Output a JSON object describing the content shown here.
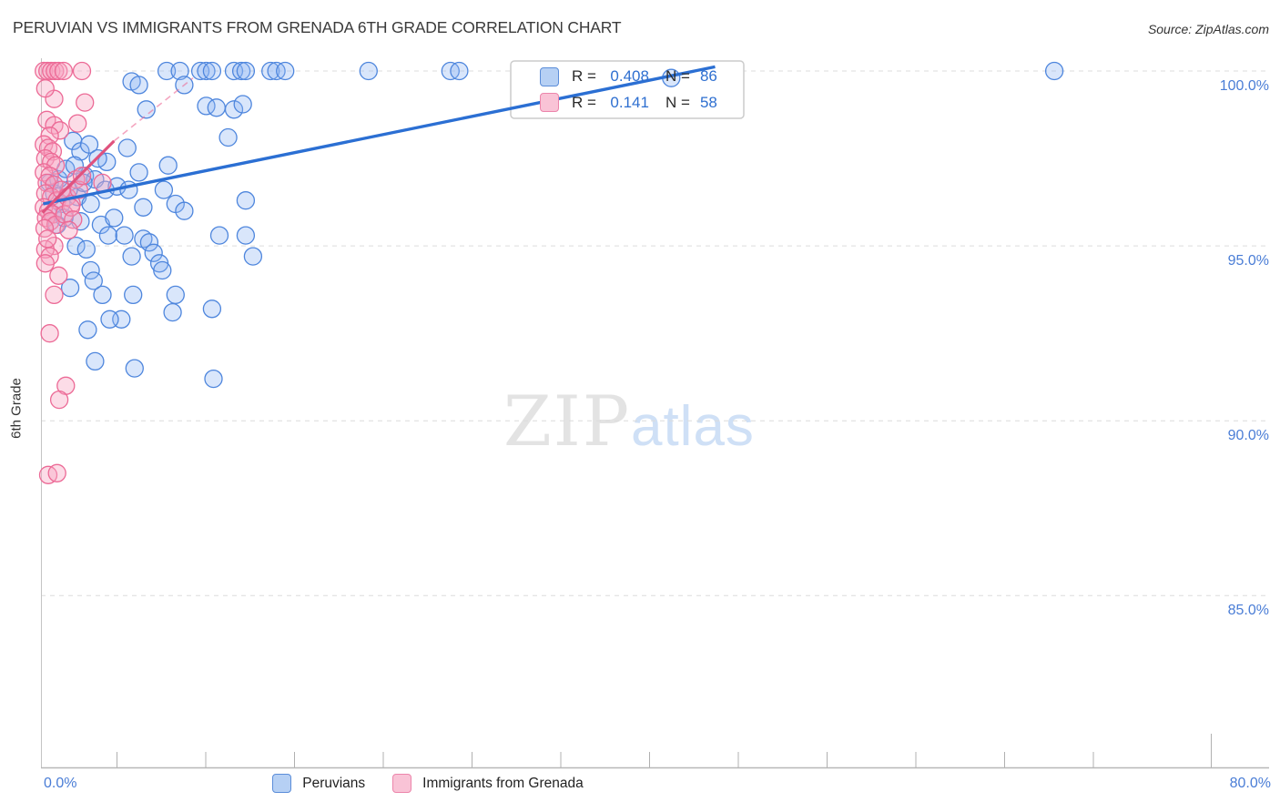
{
  "title": "PERUVIAN VS IMMIGRANTS FROM GRENADA 6TH GRADE CORRELATION CHART",
  "source": "Source: ZipAtlas.com",
  "watermark": {
    "part1": "ZIP",
    "part2": "atlas"
  },
  "y_axis": {
    "label": "6th Grade",
    "ticks": [
      {
        "value": 100,
        "label": "100.0%"
      },
      {
        "value": 95,
        "label": "95.0%"
      },
      {
        "value": 90,
        "label": "90.0%"
      },
      {
        "value": 85,
        "label": "85.0%"
      }
    ]
  },
  "x_axis": {
    "min": 0,
    "max": 80,
    "label_left": "0.0%",
    "label_right": "80.0%"
  },
  "legend_box": {
    "rows": [
      {
        "series": "peruvians",
        "r_label": "R =",
        "r_value": "0.408",
        "n_label": "N =",
        "n_value": "86"
      },
      {
        "series": "grenada",
        "r_label": "R =",
        "r_value": "0.141",
        "n_label": "N =",
        "n_value": "58"
      }
    ]
  },
  "bottom_legend": [
    {
      "series": "peruvians",
      "label": "Peruvians"
    },
    {
      "series": "grenada",
      "label": "Immigrants from Grenada"
    }
  ],
  "colors": {
    "accent_label": "#4a7dd6",
    "grid": "#dcdcdc",
    "axis": "#b8b8b8",
    "peruvians_stroke": "#4e86dd",
    "peruvians_fill": "rgba(140,180,242,0.33)",
    "peruvians_trend": "#2b6fd3",
    "grenada_stroke": "#ec6a96",
    "grenada_fill": "rgba(247,163,193,0.38)",
    "grenada_trend": "#e0527e",
    "grenada_trend_dash": "rgba(236,106,150,0.6)"
  },
  "chart_data": {
    "type": "scatter",
    "xlabel": "",
    "ylabel": "6th Grade",
    "xlim": [
      0,
      80
    ],
    "ylim": [
      81,
      100.6
    ],
    "grid": "horizontal-dashed",
    "legend_position": "top-center-box",
    "series": [
      {
        "name": "Peruvians",
        "r": 0.408,
        "n": 86,
        "points": [
          [
            8.6,
            100
          ],
          [
            9.5,
            100
          ],
          [
            10.9,
            100
          ],
          [
            11.3,
            100
          ],
          [
            11.7,
            100
          ],
          [
            13.2,
            100
          ],
          [
            13.7,
            100
          ],
          [
            14.0,
            100
          ],
          [
            15.7,
            100
          ],
          [
            16.1,
            100
          ],
          [
            16.7,
            100
          ],
          [
            22.4,
            100
          ],
          [
            28.0,
            100
          ],
          [
            28.6,
            100
          ],
          [
            69.3,
            100
          ],
          [
            43.1,
            99.8
          ],
          [
            6.2,
            99.7
          ],
          [
            6.7,
            99.6
          ],
          [
            9.8,
            99.6
          ],
          [
            11.3,
            99.0
          ],
          [
            12.0,
            98.95
          ],
          [
            13.2,
            98.9
          ],
          [
            13.8,
            99.05
          ],
          [
            7.2,
            98.9
          ],
          [
            2.2,
            98.0
          ],
          [
            2.7,
            97.7
          ],
          [
            3.3,
            97.9
          ],
          [
            4.5,
            97.4
          ],
          [
            5.9,
            97.8
          ],
          [
            6.7,
            97.1
          ],
          [
            8.7,
            97.3
          ],
          [
            12.8,
            98.1
          ],
          [
            3.0,
            97.0
          ],
          [
            3.7,
            96.9
          ],
          [
            4.4,
            96.6
          ],
          [
            5.2,
            96.7
          ],
          [
            6.0,
            96.6
          ],
          [
            8.4,
            96.6
          ],
          [
            2.5,
            96.4
          ],
          [
            3.4,
            96.2
          ],
          [
            7.0,
            96.1
          ],
          [
            9.2,
            96.2
          ],
          [
            14.0,
            96.3
          ],
          [
            1.9,
            96.6
          ],
          [
            9.8,
            96.0
          ],
          [
            0.6,
            96.8
          ],
          [
            0.9,
            96.5
          ],
          [
            1.2,
            96.9
          ],
          [
            1.4,
            96.2
          ],
          [
            1.7,
            97.2
          ],
          [
            0.8,
            95.9
          ],
          [
            1.1,
            95.6
          ],
          [
            1.6,
            95.8
          ],
          [
            2.9,
            96.8
          ],
          [
            3.9,
            97.5
          ],
          [
            2.3,
            97.3
          ],
          [
            4.1,
            95.6
          ],
          [
            2.7,
            95.7
          ],
          [
            5.0,
            95.8
          ],
          [
            4.6,
            95.3
          ],
          [
            5.7,
            95.3
          ],
          [
            7.0,
            95.2
          ],
          [
            7.4,
            95.1
          ],
          [
            12.2,
            95.3
          ],
          [
            14.0,
            95.3
          ],
          [
            14.5,
            94.7
          ],
          [
            6.2,
            94.7
          ],
          [
            7.7,
            94.8
          ],
          [
            8.1,
            94.5
          ],
          [
            2.4,
            95.0
          ],
          [
            3.1,
            94.9
          ],
          [
            8.3,
            94.3
          ],
          [
            3.4,
            94.3
          ],
          [
            3.6,
            94.0
          ],
          [
            4.2,
            93.6
          ],
          [
            6.3,
            93.6
          ],
          [
            9.2,
            93.6
          ],
          [
            11.7,
            93.2
          ],
          [
            2.0,
            93.8
          ],
          [
            5.5,
            92.9
          ],
          [
            3.2,
            92.6
          ],
          [
            3.7,
            91.7
          ],
          [
            6.4,
            91.5
          ],
          [
            11.8,
            91.2
          ],
          [
            4.7,
            92.9
          ],
          [
            9.0,
            93.1
          ]
        ]
      },
      {
        "name": "Immigrants from Grenada",
        "r": 0.141,
        "n": 58,
        "points": [
          [
            0.2,
            100
          ],
          [
            0.45,
            100
          ],
          [
            0.7,
            100
          ],
          [
            0.95,
            100
          ],
          [
            1.2,
            100
          ],
          [
            1.55,
            100
          ],
          [
            2.8,
            100
          ],
          [
            0.9,
            99.2
          ],
          [
            3.0,
            99.1
          ],
          [
            0.3,
            99.5
          ],
          [
            2.5,
            98.5
          ],
          [
            0.4,
            98.6
          ],
          [
            0.9,
            98.45
          ],
          [
            1.3,
            98.3
          ],
          [
            0.6,
            98.15
          ],
          [
            0.2,
            97.9
          ],
          [
            0.5,
            97.8
          ],
          [
            0.8,
            97.7
          ],
          [
            0.3,
            97.5
          ],
          [
            0.7,
            97.4
          ],
          [
            1.0,
            97.3
          ],
          [
            0.2,
            97.1
          ],
          [
            0.6,
            97.0
          ],
          [
            0.4,
            96.8
          ],
          [
            0.9,
            96.75
          ],
          [
            0.3,
            96.5
          ],
          [
            0.7,
            96.4
          ],
          [
            1.1,
            96.3
          ],
          [
            0.2,
            96.1
          ],
          [
            0.5,
            96.0
          ],
          [
            0.8,
            95.9
          ],
          [
            0.35,
            95.8
          ],
          [
            0.65,
            95.7
          ],
          [
            1.0,
            95.6
          ],
          [
            0.25,
            95.5
          ],
          [
            1.4,
            96.6
          ],
          [
            1.8,
            96.4
          ],
          [
            2.1,
            96.2
          ],
          [
            1.6,
            95.9
          ],
          [
            2.4,
            96.9
          ],
          [
            2.6,
            96.6
          ],
          [
            2.05,
            96.1
          ],
          [
            2.2,
            95.75
          ],
          [
            1.9,
            95.45
          ],
          [
            2.8,
            97.0
          ],
          [
            4.2,
            96.8
          ],
          [
            0.9,
            95.0
          ],
          [
            0.3,
            94.9
          ],
          [
            0.6,
            94.7
          ],
          [
            0.45,
            95.2
          ],
          [
            0.3,
            94.5
          ],
          [
            1.2,
            94.15
          ],
          [
            0.9,
            93.6
          ],
          [
            0.6,
            92.5
          ],
          [
            1.7,
            91.0
          ],
          [
            1.25,
            90.6
          ],
          [
            0.5,
            88.45
          ],
          [
            1.1,
            88.5
          ]
        ]
      }
    ],
    "trend_lines": [
      {
        "series": "peruvians",
        "style": "solid",
        "x1": 0.15,
        "y1": 96.2,
        "x2": 46.1,
        "y2": 100.12
      },
      {
        "series": "grenada",
        "style": "solid",
        "x1": 0.1,
        "y1": 95.95,
        "x2": 5.0,
        "y2": 98.0
      },
      {
        "series": "grenada",
        "style": "dashed",
        "x1": 5.0,
        "y1": 98.0,
        "x2": 10.4,
        "y2": 99.8
      }
    ]
  }
}
